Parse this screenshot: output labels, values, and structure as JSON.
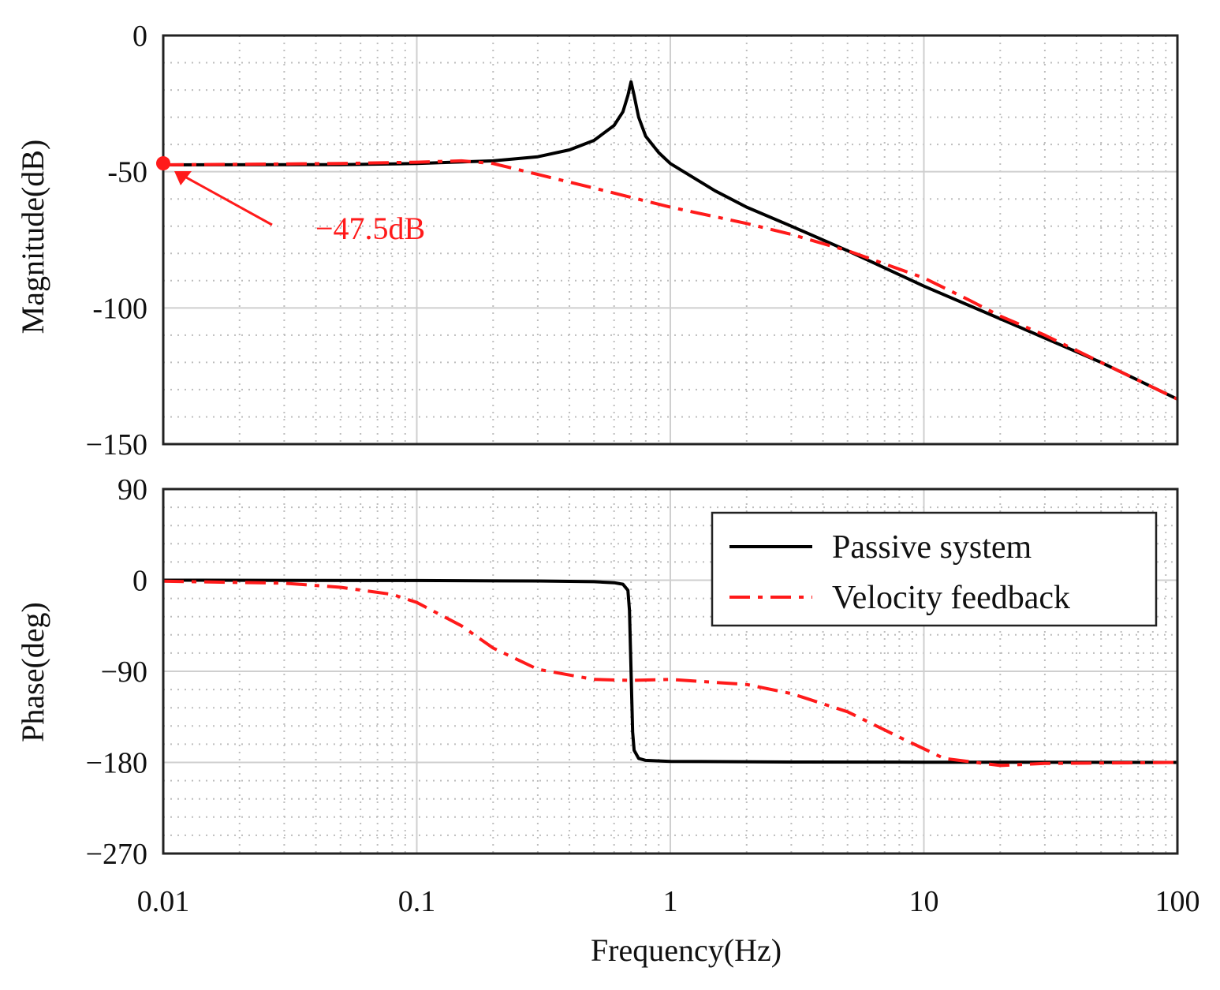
{
  "chart_data": {
    "type": "line",
    "title": "",
    "xlabel": "Frequency(Hz)",
    "x_scale": "log",
    "xlim": [
      0.01,
      100
    ],
    "x_ticks": [
      0.01,
      0.1,
      1,
      10,
      100
    ],
    "x_tick_labels": [
      "0.01",
      "0.1",
      "1",
      "10",
      "100"
    ],
    "colors": {
      "passive": "#000000",
      "velocity": "#ff1a1a",
      "grid_major": "#cfcfcf",
      "grid_minor": "#bdbdbd"
    },
    "panels": [
      {
        "id": "magnitude",
        "ylabel": "Magnitude(dB)",
        "ylim": [
          -150,
          0
        ],
        "y_ticks": [
          0,
          -50,
          -100,
          -150
        ],
        "y_tick_labels": [
          "0",
          "-50",
          "-100",
          "−150"
        ],
        "series": [
          {
            "name": "Passive system",
            "style": "solid",
            "points": [
              [
                0.01,
                -47.5
              ],
              [
                0.05,
                -47.4
              ],
              [
                0.1,
                -47.0
              ],
              [
                0.2,
                -46.0
              ],
              [
                0.3,
                -44.5
              ],
              [
                0.4,
                -42.0
              ],
              [
                0.5,
                -38.5
              ],
              [
                0.6,
                -33.0
              ],
              [
                0.65,
                -28.0
              ],
              [
                0.68,
                -22.0
              ],
              [
                0.7,
                -17.0
              ],
              [
                0.72,
                -22.0
              ],
              [
                0.75,
                -30.0
              ],
              [
                0.8,
                -37.0
              ],
              [
                0.9,
                -43.0
              ],
              [
                1.0,
                -47.0
              ],
              [
                1.5,
                -57.0
              ],
              [
                2,
                -63.0
              ],
              [
                3,
                -70.0
              ],
              [
                5,
                -79.0
              ],
              [
                10,
                -92.0
              ],
              [
                20,
                -104.0
              ],
              [
                50,
                -120.0
              ],
              [
                100,
                -133.5
              ]
            ]
          },
          {
            "name": "Velocity feedback",
            "style": "dashdot",
            "points": [
              [
                0.01,
                -47.5
              ],
              [
                0.05,
                -47.0
              ],
              [
                0.1,
                -46.5
              ],
              [
                0.15,
                -46.0
              ],
              [
                0.2,
                -47.0
              ],
              [
                0.3,
                -51.0
              ],
              [
                0.5,
                -56.0
              ],
              [
                1,
                -63.0
              ],
              [
                2,
                -69.0
              ],
              [
                3,
                -73.0
              ],
              [
                5,
                -79.0
              ],
              [
                10,
                -89.0
              ],
              [
                15,
                -97.0
              ],
              [
                20,
                -103.0
              ],
              [
                30,
                -110.0
              ],
              [
                50,
                -120.0
              ],
              [
                100,
                -133.5
              ]
            ]
          }
        ],
        "annotation": {
          "text": "−47.5dB",
          "point": [
            0.01,
            -47.5
          ],
          "color": "#ff1a1a"
        }
      },
      {
        "id": "phase",
        "ylabel": "Phase(deg)",
        "ylim": [
          -270,
          90
        ],
        "y_ticks": [
          90,
          0,
          -90,
          -180,
          -270
        ],
        "y_tick_labels": [
          "90",
          "0",
          "−90",
          "−180",
          "−270"
        ],
        "series": [
          {
            "name": "Passive system",
            "style": "solid",
            "points": [
              [
                0.01,
                0.0
              ],
              [
                0.1,
                -0.3
              ],
              [
                0.3,
                -0.8
              ],
              [
                0.5,
                -1.5
              ],
              [
                0.6,
                -2.5
              ],
              [
                0.65,
                -4.0
              ],
              [
                0.68,
                -10.0
              ],
              [
                0.69,
                -30.0
              ],
              [
                0.7,
                -90.0
              ],
              [
                0.71,
                -150.0
              ],
              [
                0.72,
                -168.0
              ],
              [
                0.75,
                -176.0
              ],
              [
                0.8,
                -178.0
              ],
              [
                1,
                -179.0
              ],
              [
                3,
                -179.6
              ],
              [
                10,
                -179.8
              ],
              [
                100,
                -180.0
              ]
            ]
          },
          {
            "name": "Velocity feedback",
            "style": "dashdot",
            "points": [
              [
                0.01,
                -1.0
              ],
              [
                0.03,
                -3.0
              ],
              [
                0.05,
                -7.0
              ],
              [
                0.08,
                -14.0
              ],
              [
                0.1,
                -22.0
              ],
              [
                0.15,
                -45.0
              ],
              [
                0.2,
                -67.0
              ],
              [
                0.3,
                -88.0
              ],
              [
                0.5,
                -98.0
              ],
              [
                0.7,
                -99.0
              ],
              [
                1,
                -98.0
              ],
              [
                2,
                -103.0
              ],
              [
                3,
                -112.0
              ],
              [
                5,
                -130.0
              ],
              [
                8,
                -155.0
              ],
              [
                12,
                -176.0
              ],
              [
                20,
                -183.0
              ],
              [
                30,
                -181.0
              ],
              [
                100,
                -180.0
              ]
            ]
          }
        ],
        "legend": {
          "placement": "top-right",
          "entries": [
            {
              "label": "Passive system",
              "style": "solid"
            },
            {
              "label": "Velocity feedback",
              "style": "dashdot"
            }
          ]
        }
      }
    ]
  }
}
